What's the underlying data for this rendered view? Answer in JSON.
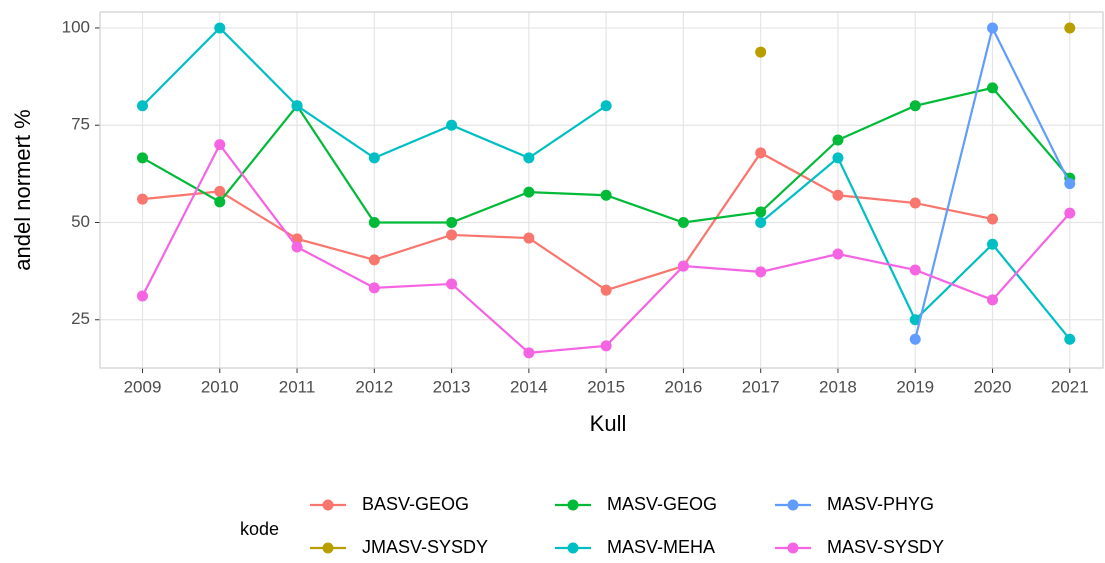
{
  "chart_data": {
    "type": "line",
    "x_label": "Kull",
    "y_label": "andel normert %",
    "x": [
      2009,
      2010,
      2011,
      2012,
      2013,
      2014,
      2015,
      2016,
      2017,
      2018,
      2019,
      2020,
      2021
    ],
    "xlim": [
      2008.45,
      2021.43
    ],
    "xticks": [
      2009,
      2010,
      2011,
      2012,
      2013,
      2014,
      2015,
      2016,
      2017,
      2018,
      2019,
      2020,
      2021
    ],
    "ylim": [
      12.6,
      104.1
    ],
    "yticks": [
      25,
      50,
      75,
      100
    ],
    "grid": true,
    "legend_title": "kode",
    "legend_position": "bottom",
    "series": [
      {
        "name": "BASV-GEOG",
        "color": "#F8766D",
        "values": [
          56,
          58,
          45.8,
          40.4,
          46.8,
          46,
          32.6,
          38.8,
          67.9,
          57,
          55,
          50.9,
          null
        ]
      },
      {
        "name": "JMASV-SYSDY",
        "color": "#B79F00",
        "values": [
          null,
          null,
          null,
          null,
          null,
          null,
          null,
          null,
          93.8,
          null,
          null,
          null,
          100
        ]
      },
      {
        "name": "MASV-GEOG",
        "color": "#00BA38",
        "values": [
          66.6,
          55.3,
          80,
          50,
          50,
          57.8,
          57,
          50,
          52.7,
          71.2,
          80,
          84.6,
          61.4
        ]
      },
      {
        "name": "MASV-MEHA",
        "color": "#00BFC4",
        "values": [
          80,
          100,
          80,
          66.6,
          75,
          66.6,
          80,
          null,
          50,
          66.6,
          25,
          44.4,
          20
        ]
      },
      {
        "name": "MASV-PHYG",
        "color": "#619CFF",
        "values": [
          null,
          null,
          null,
          null,
          null,
          null,
          null,
          null,
          null,
          null,
          20,
          100,
          60
        ]
      },
      {
        "name": "MASV-SYSDY",
        "color": "#F564E3",
        "values": [
          31.1,
          70,
          43.7,
          33.2,
          34.2,
          16.5,
          18.3,
          38.8,
          37.3,
          41.9,
          37.8,
          30.1,
          52.4
        ]
      }
    ]
  }
}
